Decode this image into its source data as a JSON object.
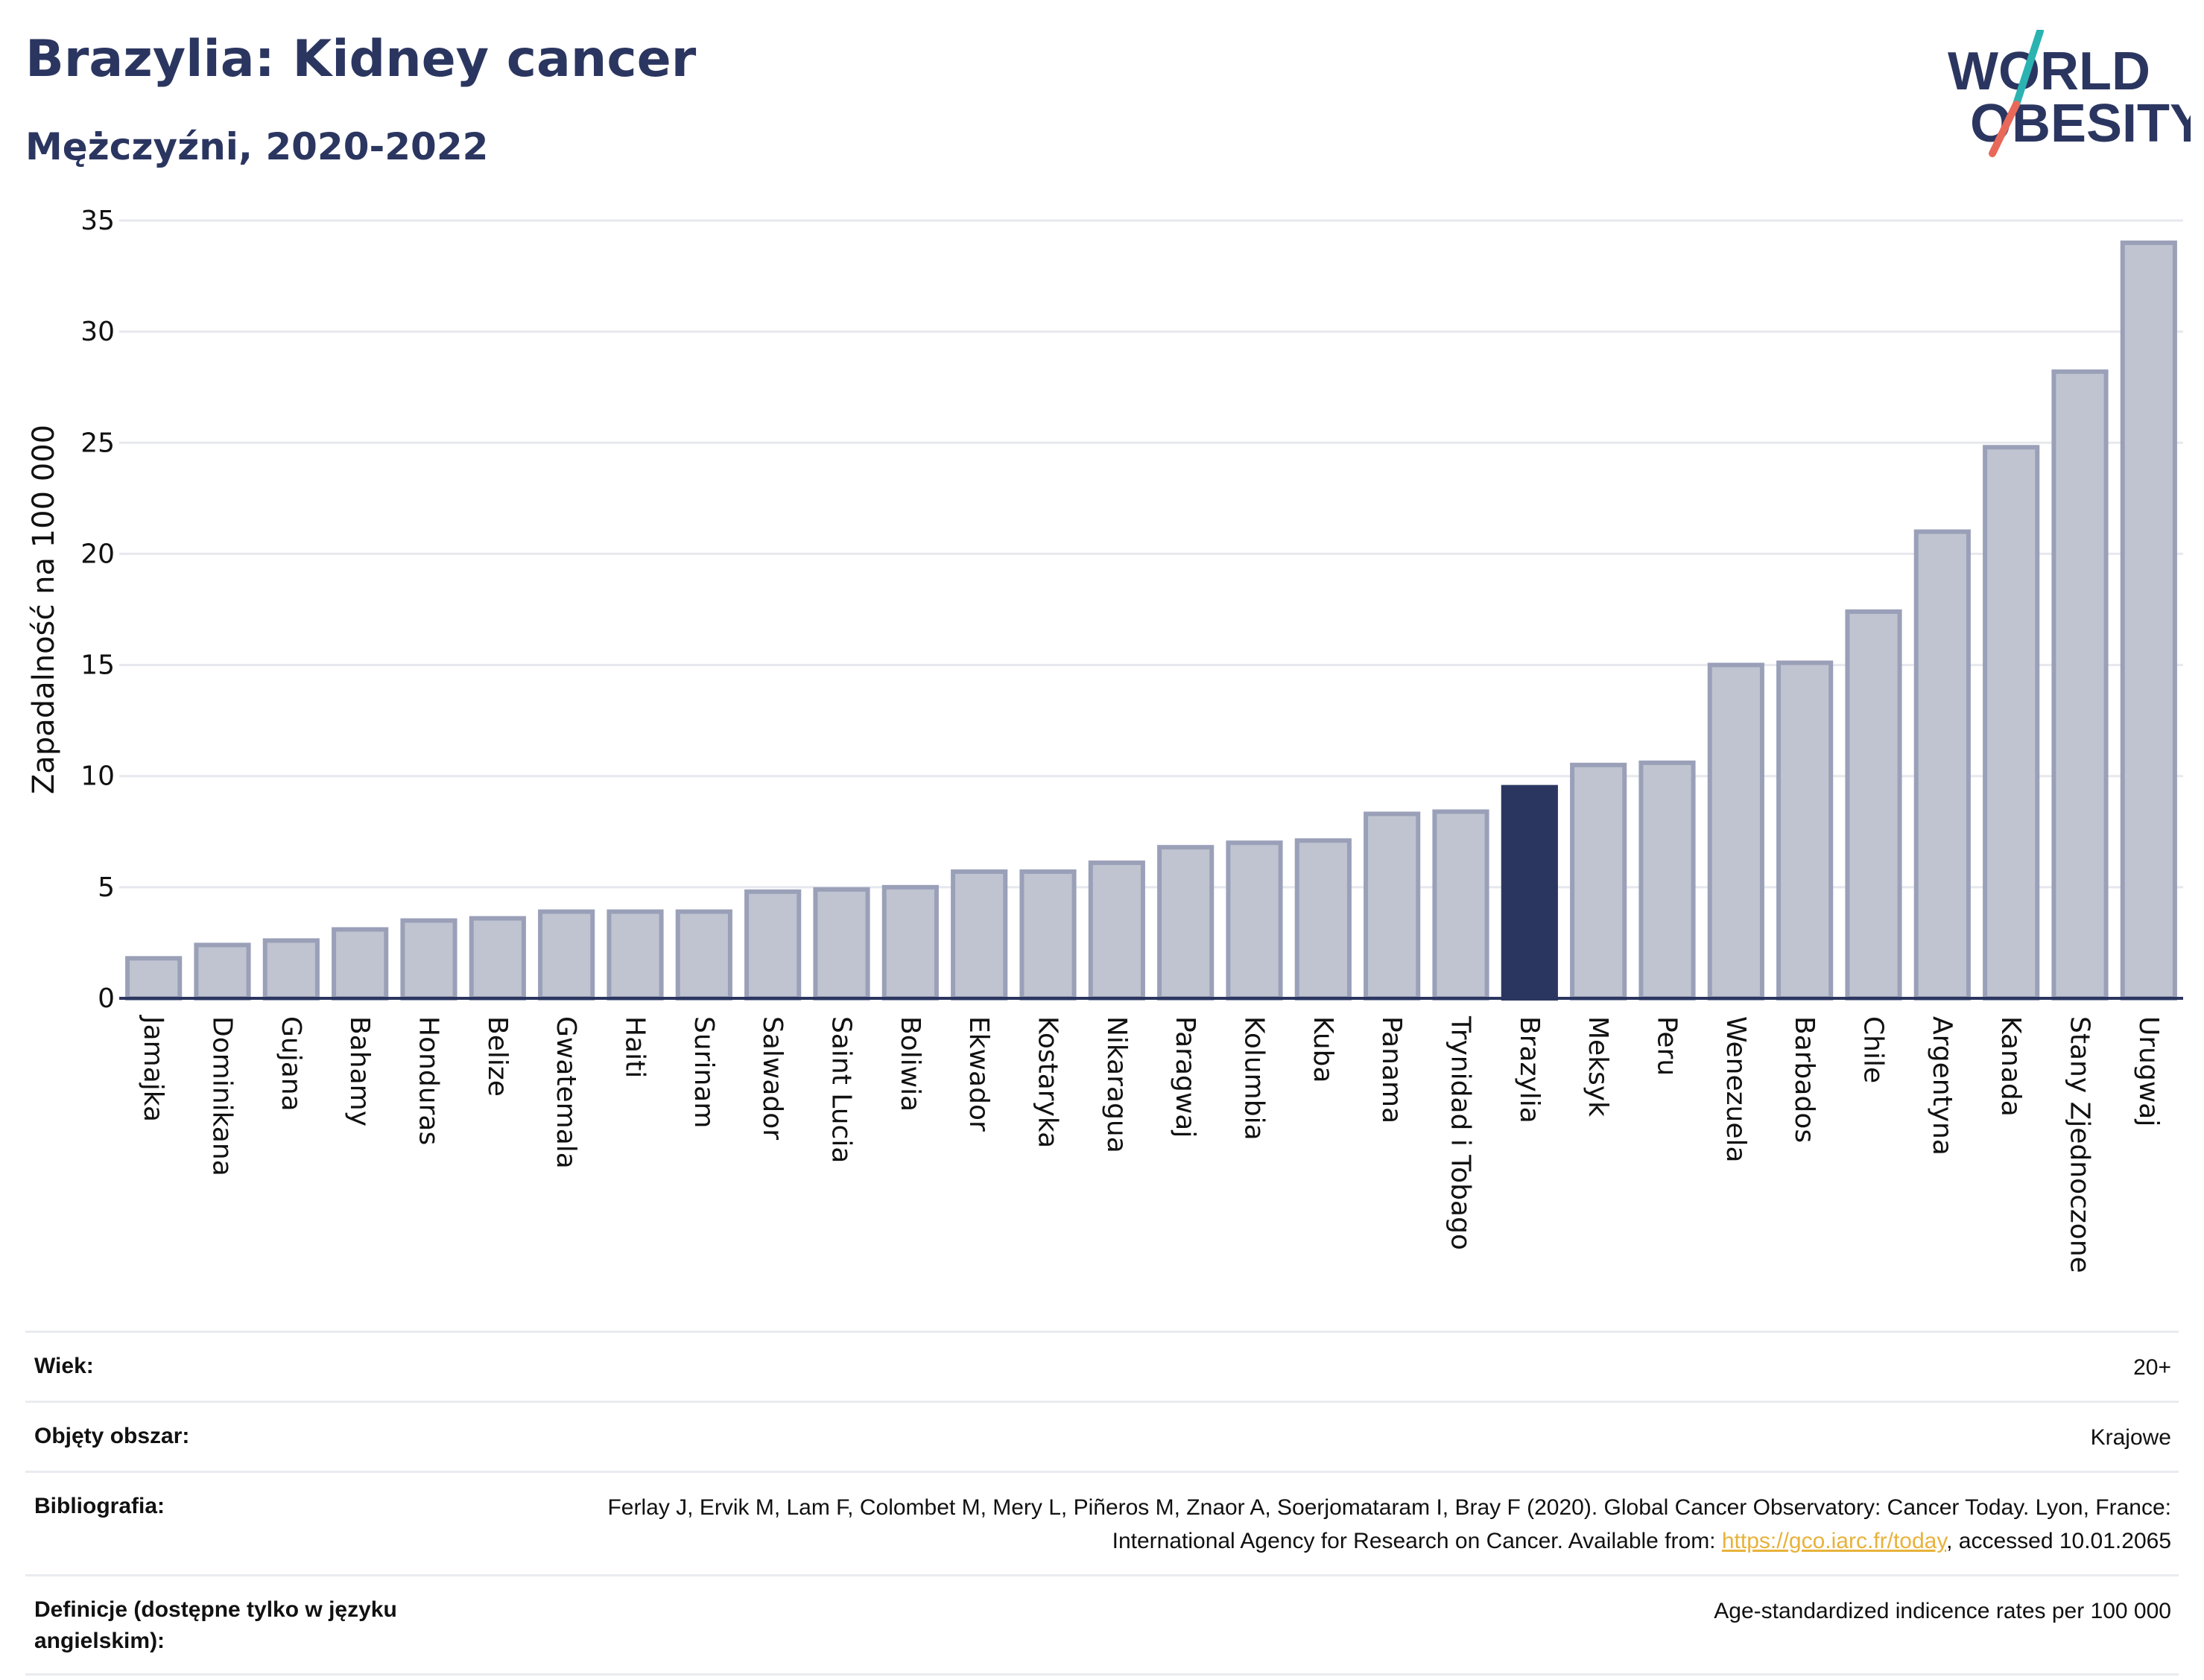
{
  "header": {
    "title": "Brazylia: Kidney cancer",
    "subtitle": "Mężczyźni, 2020-2022"
  },
  "logo": {
    "line1": "WORLD",
    "line2": "OBESITY",
    "accent_teal": "#2ab3b1",
    "accent_red": "#e8695a"
  },
  "chart_data": {
    "type": "bar",
    "ylabel": "Zapadalność na 100 000",
    "ylim": [
      0,
      35
    ],
    "yticks": [
      0,
      5,
      10,
      15,
      20,
      25,
      30,
      35
    ],
    "grid": true,
    "highlight": "Brazylia",
    "colors": {
      "bar": "#c0c4d0",
      "bar_edge": "#9aa0b8",
      "highlight": "#2b3660"
    },
    "categories": [
      "Jamajka",
      "Dominikana",
      "Gujana",
      "Bahamy",
      "Honduras",
      "Belize",
      "Gwatemala",
      "Haiti",
      "Surinam",
      "Salwador",
      "Saint Lucia",
      "Boliwia",
      "Ekwador",
      "Kostaryka",
      "Nikaragua",
      "Paragwaj",
      "Kolumbia",
      "Kuba",
      "Panama",
      "Trynidad i Tobago",
      "Brazylia",
      "Meksyk",
      "Peru",
      "Wenezuela",
      "Barbados",
      "Chile",
      "Argentyna",
      "Kanada",
      "Stany Zjednoczone",
      "Urugwaj"
    ],
    "values": [
      1.8,
      2.4,
      2.6,
      3.1,
      3.5,
      3.6,
      3.9,
      3.9,
      3.9,
      4.8,
      4.9,
      5.0,
      5.7,
      5.7,
      6.1,
      6.8,
      7.0,
      7.1,
      8.3,
      8.4,
      9.5,
      10.5,
      10.6,
      15.0,
      15.1,
      17.4,
      21.0,
      24.8,
      28.2,
      34.0
    ]
  },
  "info": {
    "age_label": "Wiek:",
    "age_value": "20+",
    "coverage_label": "Objęty obszar:",
    "coverage_value": "Krajowe",
    "bibliography_label": "Bibliografia:",
    "bibliography_text1": "Ferlay J, Ervik M, Lam F, Colombet M, Mery L, Piñeros M, Znaor A, Soerjomataram I, Bray F (2020). Global Cancer Observatory: Cancer Today. Lyon, France: International Agency for Research on Cancer. Available from: ",
    "bibliography_link": "https://gco.iarc.fr/today",
    "bibliography_text2": ", accessed 10.01.2065",
    "definitions_label": "Definicje (dostępne tylko w języku angielskim):",
    "definitions_value": "Age-standardized indicence rates per 100 000"
  }
}
